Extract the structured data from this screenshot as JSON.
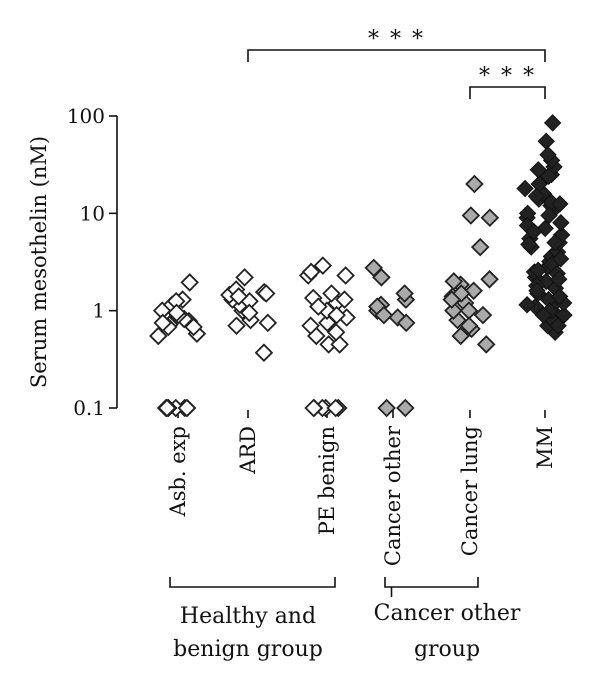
{
  "chart_data": {
    "type": "scatter",
    "title": "",
    "ylabel": "Serum mesothelin (nM)",
    "xlabel": "",
    "yscale": "log",
    "ylim": [
      0.1,
      100
    ],
    "yticks": [
      "0.1",
      "1",
      "10",
      "100"
    ],
    "grid": false,
    "categories": [
      "Asb. exp",
      "ARD",
      "PE benign",
      "Cancer other",
      "Cancer lung",
      "MM"
    ],
    "series": [
      {
        "category": "Asb. exp",
        "fill": "#ffffff",
        "values": [
          0.1,
          0.1,
          0.1,
          0.1,
          0.1,
          0.1,
          0.1,
          0.58,
          0.72,
          0.78,
          0.55,
          0.68,
          0.82,
          0.9,
          1.0,
          1.15,
          1.3,
          1.25,
          0.95,
          0.75,
          1.95,
          0.68
        ]
      },
      {
        "category": "ARD",
        "fill": "#ffffff",
        "values": [
          0.8,
          1.0,
          1.15,
          1.25,
          1.3,
          1.45,
          1.55,
          1.65,
          2.2,
          0.75,
          0.7,
          0.95,
          1.5,
          0.37,
          1.4
        ]
      },
      {
        "category": "PE benign",
        "fill": "#ffffff",
        "values": [
          0.1,
          0.1,
          0.1,
          0.1,
          0.1,
          0.1,
          0.45,
          0.55,
          0.75,
          0.45,
          0.6,
          0.85,
          1.0,
          1.2,
          1.35,
          1.5,
          1.3,
          1.1,
          0.9,
          2.3,
          2.5,
          2.9,
          2.3,
          0.7
        ]
      },
      {
        "category": "Cancer other",
        "fill": "#aaaaaa",
        "values": [
          0.1,
          0.1,
          0.85,
          1.0,
          1.15,
          1.3,
          1.5,
          2.75,
          1.1,
          0.9,
          0.75,
          2.2
        ]
      },
      {
        "category": "Cancer lung",
        "fill": "#aaaaaa",
        "values": [
          0.9,
          0.65,
          0.45,
          0.55,
          0.8,
          1.0,
          1.2,
          1.4,
          1.6,
          1.85,
          2.1,
          1.5,
          1.0,
          0.7,
          4.5,
          9.5,
          9.0,
          20.0,
          2.0,
          1.3
        ]
      },
      {
        "category": "MM",
        "fill": "#222222",
        "values": [
          0.6,
          0.7,
          0.8,
          0.9,
          1.0,
          1.1,
          1.2,
          1.3,
          1.5,
          1.7,
          2.0,
          2.2,
          2.5,
          2.8,
          3.2,
          3.6,
          4.0,
          4.5,
          5.0,
          5.5,
          6.0,
          7.0,
          8.0,
          9.0,
          10.0,
          11.0,
          12.0,
          13.0,
          14.0,
          16.0,
          18.0,
          20.0,
          25.0,
          30.0,
          35.0,
          55.0,
          85.0,
          1.2,
          1.4,
          2.6,
          5.0,
          7.5,
          4.8,
          0.7,
          1.0,
          24.0,
          3.0,
          1.8,
          2.4,
          6.5,
          9.5,
          15.0,
          1.15,
          1.6,
          2.1,
          3.4,
          0.9,
          12.5,
          28.0,
          40.0
        ]
      }
    ],
    "significance": [
      {
        "from": "ARD",
        "to": "MM",
        "label": "* * *"
      },
      {
        "from": "Cancer lung",
        "to": "MM",
        "label": "* * *"
      }
    ],
    "group_brackets": [
      {
        "from": "Asb. exp",
        "to": "PE benign",
        "lines": [
          "Healthy and",
          "benign group"
        ]
      },
      {
        "from": "Cancer other",
        "to": "Cancer lung",
        "lines": [
          "Cancer other",
          "group"
        ]
      }
    ]
  }
}
